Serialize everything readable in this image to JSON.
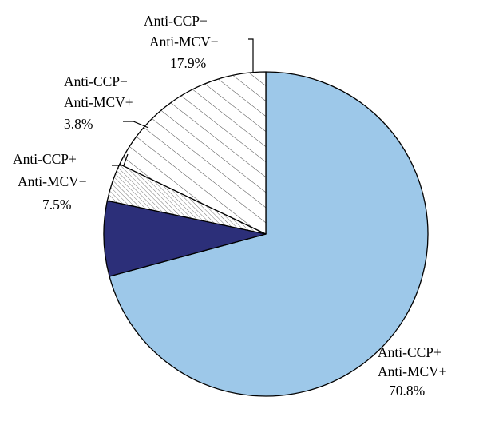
{
  "chart_data": {
    "type": "pie",
    "title": "",
    "start": "top",
    "direction": "clockwise",
    "slices": [
      {
        "lines": [
          "Anti-CCP+",
          "Anti-MCV+"
        ],
        "percent_label": "70.8%",
        "value": 70.8,
        "color": "#9dc8e9",
        "fill": "solid"
      },
      {
        "lines": [
          "Anti-CCP+",
          "Anti-MCV−"
        ],
        "percent_label": "7.5%",
        "value": 7.5,
        "color": "#2c2f79",
        "fill": "solid"
      },
      {
        "lines": [
          "Anti-CCP−",
          "Anti-MCV+"
        ],
        "percent_label": "3.8%",
        "value": 3.8,
        "color": "#ffffff",
        "fill": "fine-hatch"
      },
      {
        "lines": [
          "Anti-CCP−",
          "Anti-MCV−"
        ],
        "percent_label": "17.9%",
        "value": 17.9,
        "color": "#ffffff",
        "fill": "diagonal-hatch"
      }
    ],
    "outline_color": "#000000",
    "leader_line_color": "#000000"
  }
}
